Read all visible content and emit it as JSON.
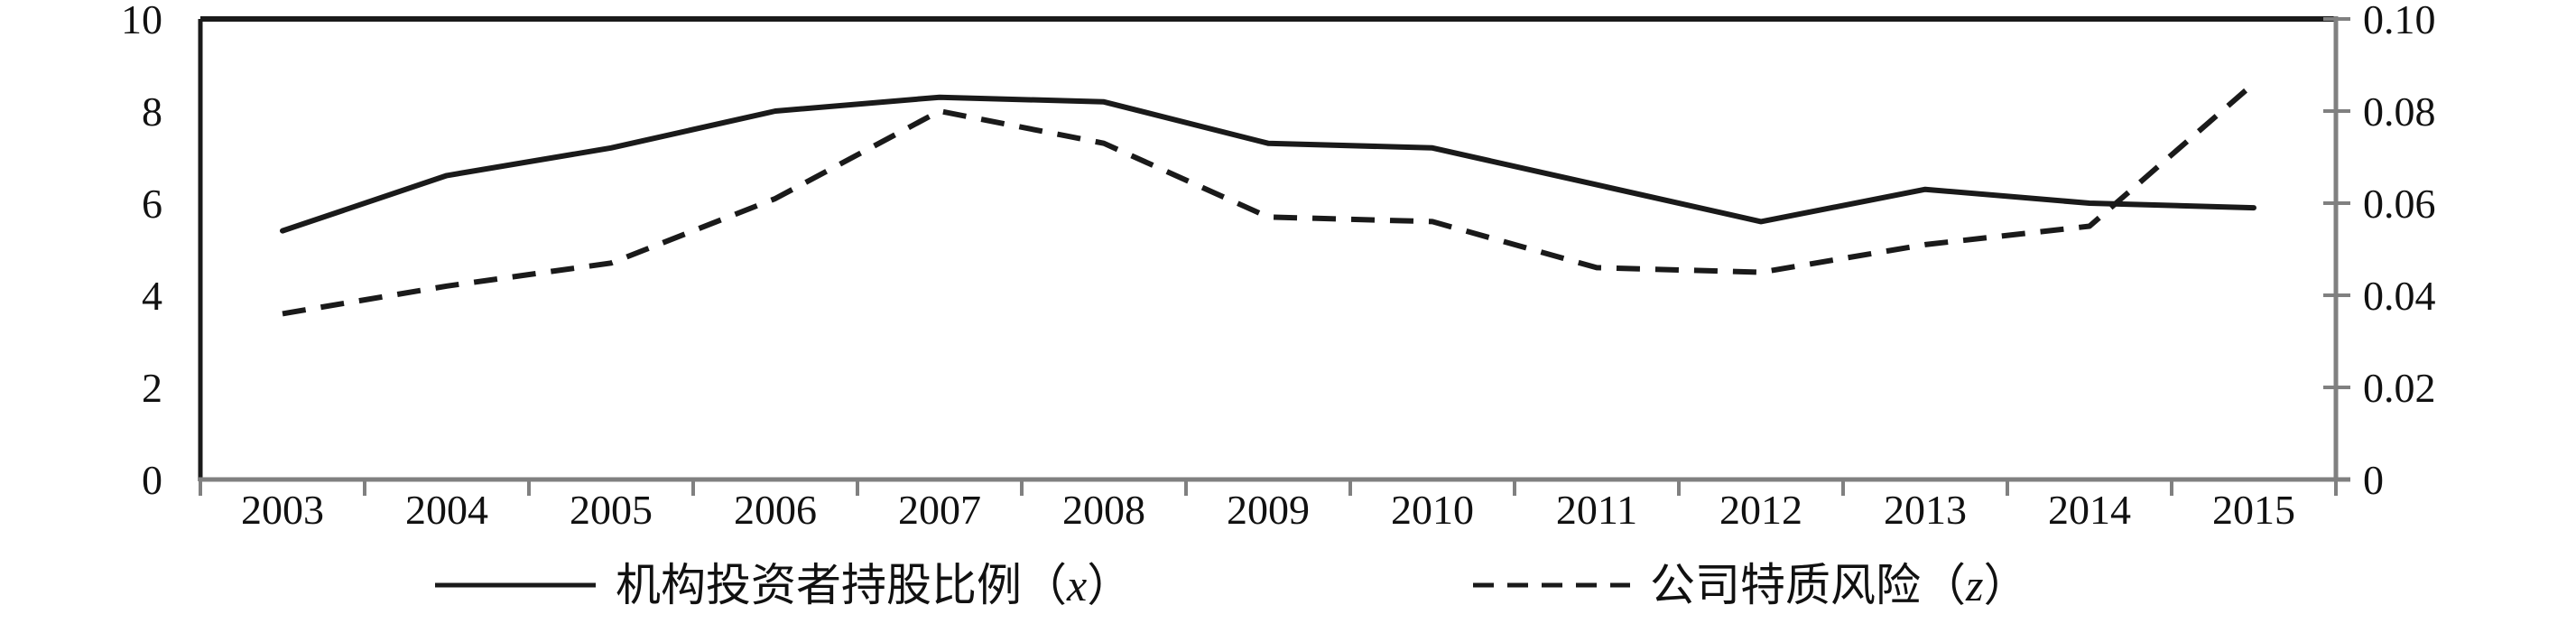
{
  "chart_data": {
    "type": "line",
    "title": "",
    "categories": [
      "2003",
      "2004",
      "2005",
      "2006",
      "2007",
      "2008",
      "2009",
      "2010",
      "2011",
      "2012",
      "2013",
      "2014",
      "2015"
    ],
    "series": [
      {
        "name": "机构投资者持股比例（x）",
        "axis": "left",
        "line_style": "solid",
        "values": [
          5.4,
          6.6,
          7.2,
          8.0,
          8.3,
          8.2,
          7.3,
          7.2,
          6.4,
          5.6,
          6.3,
          6.0,
          5.9
        ]
      },
      {
        "name": "公司特质风险（z）",
        "axis": "right",
        "line_style": "dashed",
        "values": [
          0.036,
          0.042,
          0.047,
          0.061,
          0.08,
          0.073,
          0.057,
          0.056,
          0.046,
          0.045,
          0.051,
          0.055,
          0.086
        ]
      }
    ],
    "left_axis": {
      "min": 0,
      "max": 10,
      "tick_values": [
        0,
        2,
        4,
        6,
        8,
        10
      ],
      "tick_labels": [
        "0",
        "2",
        "4",
        "6",
        "8",
        "10"
      ]
    },
    "right_axis": {
      "min": 0,
      "max": 0.1,
      "tick_values": [
        0,
        0.02,
        0.04,
        0.06,
        0.08,
        0.1
      ],
      "tick_labels": [
        "0",
        "0.02",
        "0.04",
        "0.06",
        "0.08",
        "0.10"
      ]
    },
    "xlabel": "",
    "ylabel": "",
    "grid": false,
    "legend_position": "bottom",
    "colors": {
      "line": "#1a1a1a",
      "axis_gray": "#808080",
      "text": "#111111",
      "background": "#ffffff"
    }
  }
}
